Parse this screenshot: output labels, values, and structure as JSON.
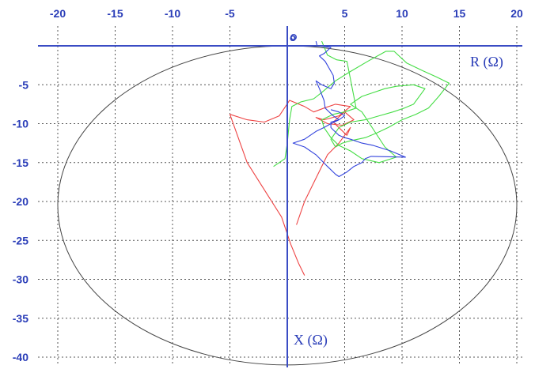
{
  "chart_data": {
    "type": "line",
    "xlabel": "R (Ω)",
    "ylabel": "X (Ω)",
    "origin_label": "o",
    "xlim": [
      -22,
      22
    ],
    "ylim": [
      -41.5,
      2
    ],
    "x_ticks": [
      "-20",
      "-15",
      "-10",
      "-5",
      "5",
      "10",
      "15",
      "20"
    ],
    "x_tick_values": [
      -20,
      -15,
      -10,
      -5,
      5,
      10,
      15,
      20
    ],
    "y_ticks": [
      "-5",
      "-10",
      "-15",
      "-20",
      "-25",
      "-30",
      "-35",
      "-40"
    ],
    "y_tick_values": [
      -5,
      -10,
      -15,
      -20,
      -25,
      -30,
      -35,
      -40
    ],
    "grid": true,
    "grid_style": "dotted",
    "colors": {
      "axis": "#3a4cc4",
      "grid": "#555555",
      "circle": "#444444",
      "red": "#ee4444",
      "green": "#44dd44",
      "blue": "#3344dd"
    },
    "ellipse": {
      "center": [
        0,
        -20.5
      ],
      "radius_r": 20,
      "radius_x": 20.5
    },
    "series": [
      {
        "color": "red",
        "points": [
          [
            1.5,
            -29.5
          ],
          [
            1.0,
            -28.0
          ],
          [
            0.3,
            -25.5
          ],
          [
            -0.5,
            -22.0
          ],
          [
            -2.0,
            -18.5
          ],
          [
            -3.5,
            -15.0
          ],
          [
            -5.0,
            -8.8
          ],
          [
            -3.5,
            -9.5
          ],
          [
            -2.0,
            -9.8
          ],
          [
            -0.7,
            -9.0
          ],
          [
            0.2,
            -7.0
          ],
          [
            1.5,
            -7.8
          ],
          [
            2.3,
            -8.5
          ],
          [
            3.2,
            -8.0
          ],
          [
            4.2,
            -7.5
          ],
          [
            5.5,
            -7.8
          ],
          [
            4.5,
            -9.0
          ],
          [
            3.2,
            -9.5
          ],
          [
            2.5,
            -9.2
          ],
          [
            3.5,
            -10.0
          ],
          [
            4.8,
            -10.2
          ],
          [
            5.8,
            -9.5
          ],
          [
            5.0,
            -8.5
          ],
          [
            4.0,
            -9.8
          ],
          [
            5.2,
            -11.5
          ],
          [
            5.5,
            -10.5
          ],
          [
            4.5,
            -12.5
          ],
          [
            3.5,
            -14.0
          ],
          [
            2.5,
            -17.0
          ],
          [
            1.5,
            -20.0
          ],
          [
            0.8,
            -23.0
          ]
        ]
      },
      {
        "color": "green",
        "points": [
          [
            -1.2,
            -15.5
          ],
          [
            -0.2,
            -14.5
          ],
          [
            0.0,
            -12.5
          ],
          [
            0.2,
            -9.5
          ],
          [
            0.4,
            -7.8
          ],
          [
            1.2,
            -7.2
          ],
          [
            2.3,
            -6.8
          ],
          [
            3.0,
            -6.0
          ],
          [
            4.2,
            -4.5
          ],
          [
            5.5,
            -3.3
          ],
          [
            7.0,
            -2.0
          ],
          [
            8.6,
            -0.7
          ],
          [
            9.3,
            -0.7
          ],
          [
            10.4,
            -2.2
          ],
          [
            11.8,
            -3.2
          ],
          [
            13.0,
            -4.0
          ],
          [
            14.1,
            -4.8
          ],
          [
            13.2,
            -6.5
          ],
          [
            12.3,
            -8.0
          ],
          [
            11.2,
            -8.8
          ],
          [
            10.0,
            -9.5
          ],
          [
            8.8,
            -10.5
          ],
          [
            7.8,
            -11.2
          ],
          [
            6.8,
            -11.8
          ],
          [
            5.5,
            -12.2
          ],
          [
            4.8,
            -12.5
          ],
          [
            4.2,
            -13.0
          ],
          [
            3.8,
            -12.0
          ],
          [
            4.5,
            -10.5
          ],
          [
            5.5,
            -9.8
          ],
          [
            6.8,
            -9.5
          ],
          [
            8.0,
            -9.0
          ],
          [
            9.2,
            -8.5
          ],
          [
            10.2,
            -8.0
          ],
          [
            11.0,
            -7.5
          ],
          [
            12.0,
            -5.5
          ],
          [
            11.0,
            -5.0
          ],
          [
            9.5,
            -5.2
          ],
          [
            8.5,
            -5.5
          ],
          [
            7.5,
            -6.0
          ],
          [
            6.5,
            -6.5
          ],
          [
            6.0,
            -7.0
          ],
          [
            5.5,
            -7.5
          ],
          [
            6.5,
            -8.5
          ],
          [
            8.5,
            -13.0
          ],
          [
            9.5,
            -14.3
          ],
          [
            8.0,
            -15.0
          ],
          [
            6.5,
            -14.5
          ],
          [
            5.5,
            -13.5
          ],
          [
            4.5,
            -12.8
          ],
          [
            3.8,
            -11.8
          ],
          [
            3.2,
            -10.5
          ],
          [
            3.0,
            -9.5
          ],
          [
            4.0,
            -8.8
          ],
          [
            5.0,
            -8.5
          ],
          [
            6.0,
            -8.0
          ],
          [
            5.2,
            -2.0
          ],
          [
            4.3,
            -1.8
          ],
          [
            3.5,
            -1.2
          ],
          [
            3.0,
            0.6
          ]
        ]
      },
      {
        "color": "blue",
        "points": [
          [
            2.5,
            0.6
          ],
          [
            2.6,
            0.0
          ],
          [
            3.8,
            -0.2
          ],
          [
            3.2,
            -1.0
          ],
          [
            2.8,
            -1.3
          ],
          [
            3.3,
            -2.0
          ],
          [
            4.0,
            -3.8
          ],
          [
            4.1,
            -4.8
          ],
          [
            3.8,
            -5.5
          ],
          [
            3.0,
            -5.0
          ],
          [
            2.5,
            -4.5
          ],
          [
            2.8,
            -5.5
          ],
          [
            3.2,
            -7.0
          ],
          [
            3.3,
            -8.0
          ],
          [
            4.0,
            -9.0
          ],
          [
            4.5,
            -9.5
          ],
          [
            3.8,
            -10.0
          ],
          [
            3.2,
            -10.5
          ],
          [
            2.5,
            -11.0
          ],
          [
            1.5,
            -12.0
          ],
          [
            0.5,
            -12.5
          ],
          [
            1.5,
            -13.0
          ],
          [
            2.5,
            -14.0
          ],
          [
            3.5,
            -15.5
          ],
          [
            4.2,
            -16.5
          ],
          [
            4.5,
            -16.8
          ],
          [
            5.2,
            -16.2
          ],
          [
            5.8,
            -15.5
          ],
          [
            6.5,
            -15.0
          ],
          [
            6.8,
            -14.5
          ],
          [
            7.3,
            -14.2
          ],
          [
            10.3,
            -14.3
          ],
          [
            9.0,
            -13.5
          ],
          [
            7.5,
            -12.8
          ],
          [
            6.5,
            -12.5
          ],
          [
            5.5,
            -12.0
          ],
          [
            5.0,
            -11.8
          ],
          [
            4.5,
            -11.5
          ],
          [
            4.0,
            -10.8
          ],
          [
            3.8,
            -10.5
          ],
          [
            3.8,
            -9.8
          ],
          [
            4.5,
            -9.5
          ],
          [
            5.0,
            -9.0
          ],
          [
            4.5,
            -8.5
          ],
          [
            3.8,
            -8.2
          ]
        ]
      }
    ]
  }
}
